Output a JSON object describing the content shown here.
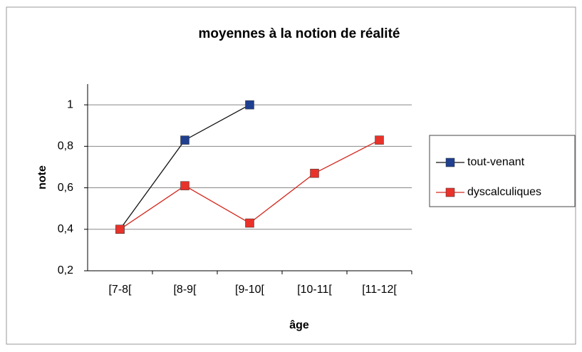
{
  "chart_data": {
    "type": "line",
    "title": "moyennes à la notion de réalité",
    "x_label": "âge",
    "y_label": "note",
    "categories": [
      "[7-8[",
      "[8-9[",
      "[9-10[",
      "[10-11[",
      "[11-12["
    ],
    "series": [
      {
        "name": "tout-venant",
        "color": "#1f3f8f",
        "values": [
          0.4,
          0.83,
          1,
          null,
          null
        ]
      },
      {
        "name": "dyscalculiques",
        "color": "#e8322a",
        "values": [
          0.4,
          0.61,
          0.43,
          0.67,
          0.83
        ]
      }
    ],
    "ylim": [
      0.2,
      1.1
    ],
    "yticks": [
      {
        "value": 0.2,
        "label": "0,2"
      },
      {
        "value": 0.4,
        "label": "0,4"
      },
      {
        "value": 0.6,
        "label": "0,6"
      },
      {
        "value": 0.8,
        "label": "0,8"
      },
      1
    ],
    "grid": true,
    "legend": "right"
  }
}
